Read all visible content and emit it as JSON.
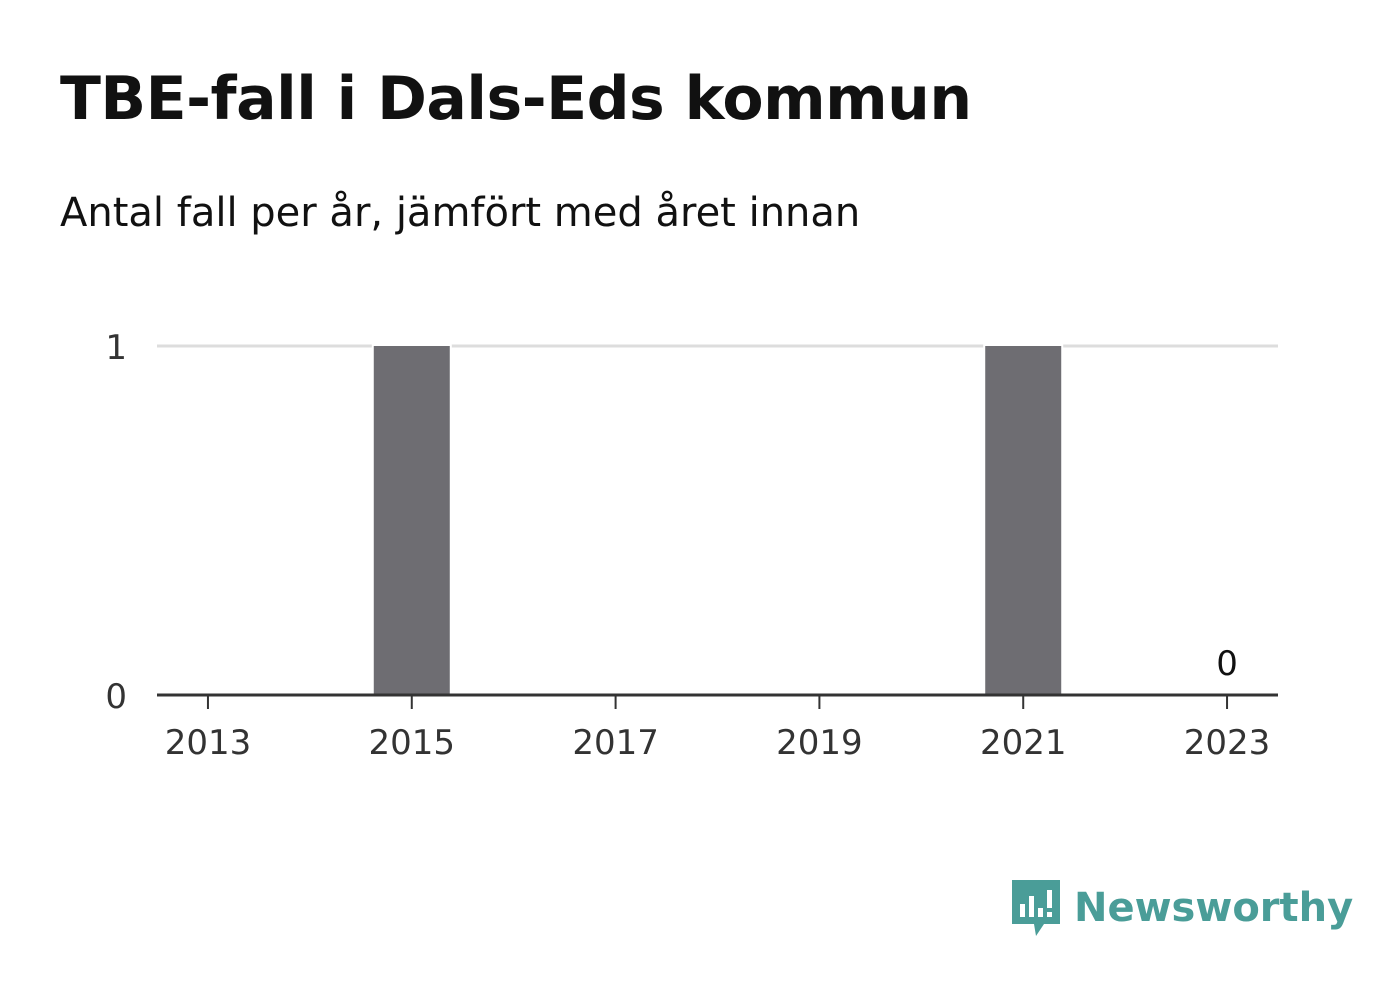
{
  "title": "TBE-fall i Dals-Eds kommun",
  "subtitle": "Antal fall per år, jämfört med året innan",
  "brand": {
    "name": "Newsworthy",
    "color": "#4a9d98",
    "icon": "bar-chart-speech-bubble-icon"
  },
  "colors": {
    "bar": "#6e6d72",
    "grid": "#dddddd",
    "axis": "#333333"
  },
  "chart_data": {
    "type": "bar",
    "categories": [
      "2013",
      "2014",
      "2015",
      "2016",
      "2017",
      "2018",
      "2019",
      "2020",
      "2021",
      "2022",
      "2023"
    ],
    "values": [
      0,
      0,
      1,
      0,
      0,
      0,
      0,
      0,
      1,
      0,
      0
    ],
    "x_tick_labels": [
      "2013",
      "2015",
      "2017",
      "2019",
      "2021",
      "2023"
    ],
    "y_ticks": [
      0,
      1
    ],
    "ylim": [
      0,
      1
    ],
    "grid": true,
    "annotations": [
      {
        "category": "2023",
        "text": "0"
      }
    ],
    "xlabel": "",
    "ylabel": ""
  }
}
